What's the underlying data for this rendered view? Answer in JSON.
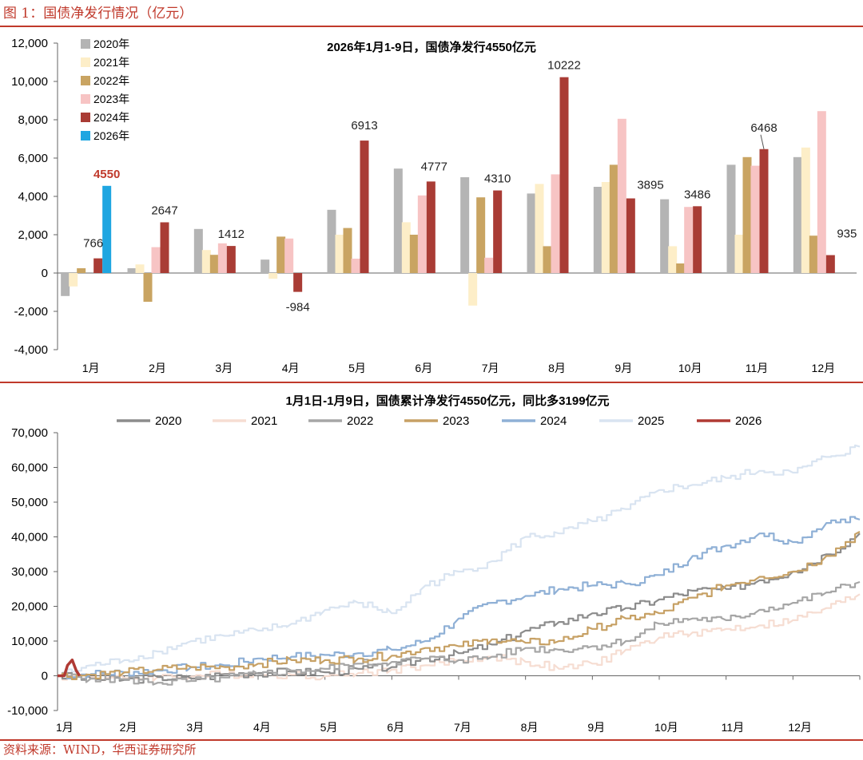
{
  "figure_title": "图 1：国债净发行情况（亿元）",
  "source": "资料来源：WIND，华西证券研究所",
  "colors": {
    "accent": "#c0392b",
    "s2020": "#b4b4b4",
    "s2021": "#fdeec8",
    "s2022": "#c9a462",
    "s2023": "#f7c4c4",
    "s2024": "#a93c35",
    "s2026": "#1fa6e1",
    "l2020": "#8c8c8c",
    "l2021": "#f6ddd2",
    "l2022": "#a6a6a6",
    "l2023": "#c7a165",
    "l2024": "#8fb0d6",
    "l2025": "#d9e4f1",
    "l2026": "#b03a34"
  },
  "chart_data": [
    {
      "type": "bar",
      "title": "2026年1月1-9日，国债净发行4550亿元",
      "categories": [
        "1月",
        "2月",
        "3月",
        "4月",
        "5月",
        "6月",
        "7月",
        "8月",
        "9月",
        "10月",
        "11月",
        "12月"
      ],
      "ylim": [
        -4000,
        12000
      ],
      "yticks": [
        -4000,
        -2000,
        0,
        2000,
        4000,
        6000,
        8000,
        10000,
        12000
      ],
      "ytick_labels": [
        "-4,000",
        "-2,000",
        "0",
        "2,000",
        "4,000",
        "6,000",
        "8,000",
        "10,000",
        "12,000"
      ],
      "legend_position": "top-left",
      "series": [
        {
          "name": "2020年",
          "color_key": "s2020",
          "values": [
            -1200,
            250,
            2300,
            700,
            3300,
            5450,
            5000,
            4150,
            4500,
            3850,
            5650,
            6050
          ]
        },
        {
          "name": "2021年",
          "color_key": "s2021",
          "values": [
            -700,
            450,
            1200,
            -300,
            2000,
            2650,
            -1700,
            4650,
            4750,
            1400,
            2000,
            6550
          ]
        },
        {
          "name": "2022年",
          "color_key": "s2022",
          "values": [
            250,
            -1500,
            950,
            1900,
            2350,
            2000,
            3950,
            1400,
            5650,
            500,
            6050,
            1950
          ]
        },
        {
          "name": "2023年",
          "color_key": "s2023",
          "values": [
            null,
            1350,
            1550,
            1800,
            750,
            4050,
            800,
            5150,
            8050,
            3450,
            5600,
            8450
          ]
        },
        {
          "name": "2024年",
          "color_key": "s2024",
          "values": [
            766,
            2647,
            1412,
            -984,
            6913,
            4777,
            4310,
            10222,
            3895,
            3486,
            6468,
            935
          ]
        },
        {
          "name": "2026年",
          "color_key": "s2026",
          "values": [
            4550,
            null,
            null,
            null,
            null,
            null,
            null,
            null,
            null,
            null,
            null,
            null
          ]
        }
      ],
      "annotations": [
        {
          "text": "4550",
          "month": 0,
          "series": "2026年",
          "value": 4550,
          "highlight": true
        },
        {
          "text": "766",
          "month": 0,
          "series": "2024年",
          "value": 766
        },
        {
          "text": "2647",
          "month": 1,
          "series": "2024年",
          "value": 2647
        },
        {
          "text": "1412",
          "month": 2,
          "series": "2024年",
          "value": 1412
        },
        {
          "text": "-984",
          "month": 3,
          "series": "2024年",
          "value": -984
        },
        {
          "text": "6913",
          "month": 4,
          "series": "2024年",
          "value": 6913
        },
        {
          "text": "4777",
          "month": 5,
          "series": "2024年",
          "value": 4777
        },
        {
          "text": "4310",
          "month": 6,
          "series": "2024年",
          "value": 4310
        },
        {
          "text": "10222",
          "month": 7,
          "series": "2024年",
          "value": 10222
        },
        {
          "text": "3895",
          "month": 8,
          "series": "2024年",
          "value": 3895
        },
        {
          "text": "3486",
          "month": 9,
          "series": "2024年",
          "value": 3486
        },
        {
          "text": "6468",
          "month": 10,
          "series": "2024年",
          "value": 6468
        },
        {
          "text": "935",
          "month": 11,
          "series": "2024年",
          "value": 935
        }
      ]
    },
    {
      "type": "line",
      "title": "1月1日-1月9日，国债累计净发行4550亿元，同比多3199亿元",
      "xlabel_months": [
        "1月",
        "2月",
        "3月",
        "4月",
        "5月",
        "6月",
        "7月",
        "8月",
        "9月",
        "10月",
        "11月",
        "12月"
      ],
      "x_unit": "month (0 = Jan 1, 12 = Dec 31)",
      "ylim": [
        -10000,
        70000
      ],
      "yticks": [
        -10000,
        0,
        10000,
        20000,
        30000,
        40000,
        50000,
        60000,
        70000
      ],
      "ytick_labels": [
        "-10,000",
        "0",
        "10,000",
        "20,000",
        "30,000",
        "40,000",
        "50,000",
        "60,000",
        "70,000"
      ],
      "legend_position": "top",
      "series": [
        {
          "name": "2020",
          "color_key": "l2020",
          "x": [
            0,
            0.5,
            1,
            1.5,
            2,
            2.5,
            3,
            3.5,
            4,
            4.5,
            5,
            5.5,
            6,
            6.5,
            7,
            7.5,
            8,
            8.5,
            9,
            9.5,
            10,
            10.5,
            11,
            11.5,
            12
          ],
          "values": [
            0,
            -800,
            -1200,
            -400,
            -800,
            500,
            800,
            1200,
            1000,
            2000,
            2500,
            5000,
            6500,
            9000,
            13000,
            15500,
            18000,
            19500,
            22000,
            24500,
            25000,
            27500,
            30000,
            35000,
            41000
          ]
        },
        {
          "name": "2021",
          "color_key": "l2021",
          "x": [
            0,
            0.5,
            1,
            1.5,
            2,
            2.5,
            3,
            3.5,
            4,
            4.5,
            5,
            5.5,
            6,
            6.5,
            7,
            7.5,
            8,
            8.5,
            9,
            9.5,
            10,
            10.5,
            11,
            11.5,
            12
          ],
          "values": [
            0,
            -400,
            -700,
            -300,
            -200,
            500,
            600,
            300,
            -100,
            800,
            1800,
            3000,
            4500,
            5500,
            4000,
            2000,
            3500,
            7500,
            11000,
            12500,
            13500,
            14500,
            16000,
            19500,
            23500
          ]
        },
        {
          "name": "2022",
          "color_key": "l2022",
          "x": [
            0,
            0.5,
            1,
            1.5,
            2,
            2.5,
            3,
            3.5,
            4,
            4.5,
            5,
            5.5,
            6,
            6.5,
            7,
            7.5,
            8,
            8.5,
            9,
            9.5,
            10,
            10.5,
            11,
            11.5,
            12
          ],
          "values": [
            0,
            -800,
            -1000,
            -2000,
            -1500,
            -500,
            500,
            1500,
            2000,
            3500,
            4000,
            5000,
            4500,
            5500,
            8000,
            7500,
            8500,
            10000,
            15000,
            16500,
            16000,
            19000,
            21000,
            24000,
            27000
          ]
        },
        {
          "name": "2023",
          "color_key": "l2023",
          "x": [
            0,
            0.5,
            1,
            1.5,
            2,
            2.5,
            3,
            3.5,
            4,
            4.5,
            5,
            5.5,
            6,
            6.5,
            7,
            7.5,
            8,
            8.5,
            9,
            9.5,
            10,
            10.5,
            11,
            11.5,
            12
          ],
          "values": [
            0,
            300,
            1000,
            1800,
            2500,
            2500,
            3500,
            4500,
            4500,
            5000,
            5800,
            8000,
            8500,
            10500,
            9500,
            10000,
            13500,
            16500,
            18000,
            22500,
            26000,
            28500,
            30000,
            34500,
            41500
          ]
        },
        {
          "name": "2024",
          "color_key": "l2024",
          "x": [
            0,
            0.5,
            1,
            1.5,
            2,
            2.5,
            3,
            3.5,
            4,
            4.5,
            5,
            5.5,
            6,
            6.5,
            7,
            7.5,
            8,
            8.5,
            9,
            9.5,
            10,
            10.5,
            11,
            11.5,
            12
          ],
          "values": [
            0,
            500,
            1000,
            1500,
            2500,
            3000,
            5000,
            5500,
            6000,
            6500,
            7500,
            10000,
            16500,
            21000,
            23000,
            25000,
            26000,
            26500,
            29000,
            34500,
            37500,
            41000,
            38500,
            44000,
            45000
          ]
        },
        {
          "name": "2025",
          "color_key": "l2025",
          "x": [
            0,
            0.5,
            1,
            1.5,
            2,
            2.5,
            3,
            3.5,
            4,
            4.5,
            5,
            5.5,
            6,
            6.5,
            7,
            7.5,
            8,
            8.5,
            9,
            9.5,
            10,
            10.5,
            11,
            11.5,
            12
          ],
          "values": [
            0,
            3000,
            4500,
            7000,
            10000,
            11500,
            13000,
            15000,
            19000,
            21000,
            18000,
            26000,
            30000,
            33000,
            40000,
            41000,
            44500,
            48000,
            53500,
            55000,
            57000,
            59000,
            58500,
            63000,
            66000
          ]
        },
        {
          "name": "2026",
          "color_key": "l2026",
          "x": [
            0,
            0.1,
            0.15,
            0.22,
            0.28,
            0.33
          ],
          "values": [
            0,
            0,
            3000,
            4550,
            1500,
            0
          ]
        }
      ]
    }
  ]
}
